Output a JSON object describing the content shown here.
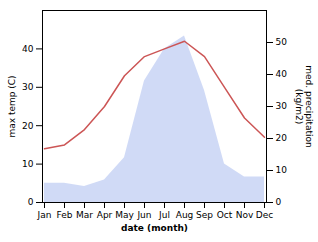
{
  "chart_data": {
    "type": "line",
    "xlabel": "date (month)",
    "ylabel": "max temp (C)",
    "y2label": "med. precipitation\n(kg/m2)",
    "categories": [
      "Jan",
      "Feb",
      "Mar",
      "Apr",
      "May",
      "Jun",
      "Jul",
      "Aug",
      "Sep",
      "Oct",
      "Nov",
      "Dec"
    ],
    "series": [
      {
        "type": "area",
        "axis": "y2",
        "color": "#aabbee",
        "values": [
          6,
          6,
          5,
          7,
          14,
          38,
          48,
          52,
          35,
          12,
          8,
          8
        ]
      },
      {
        "type": "line",
        "axis": "y",
        "color": "#cc5555",
        "values": [
          14,
          15,
          19,
          25,
          33,
          38,
          40,
          42,
          38,
          30,
          22,
          17
        ]
      }
    ],
    "ylim": [
      0,
      50
    ],
    "yticks": [
      0,
      10,
      20,
      30,
      40
    ],
    "y2lim": [
      0,
      60
    ],
    "y2ticks": [
      0,
      10,
      20,
      30,
      40,
      50
    ],
    "grid": false
  }
}
